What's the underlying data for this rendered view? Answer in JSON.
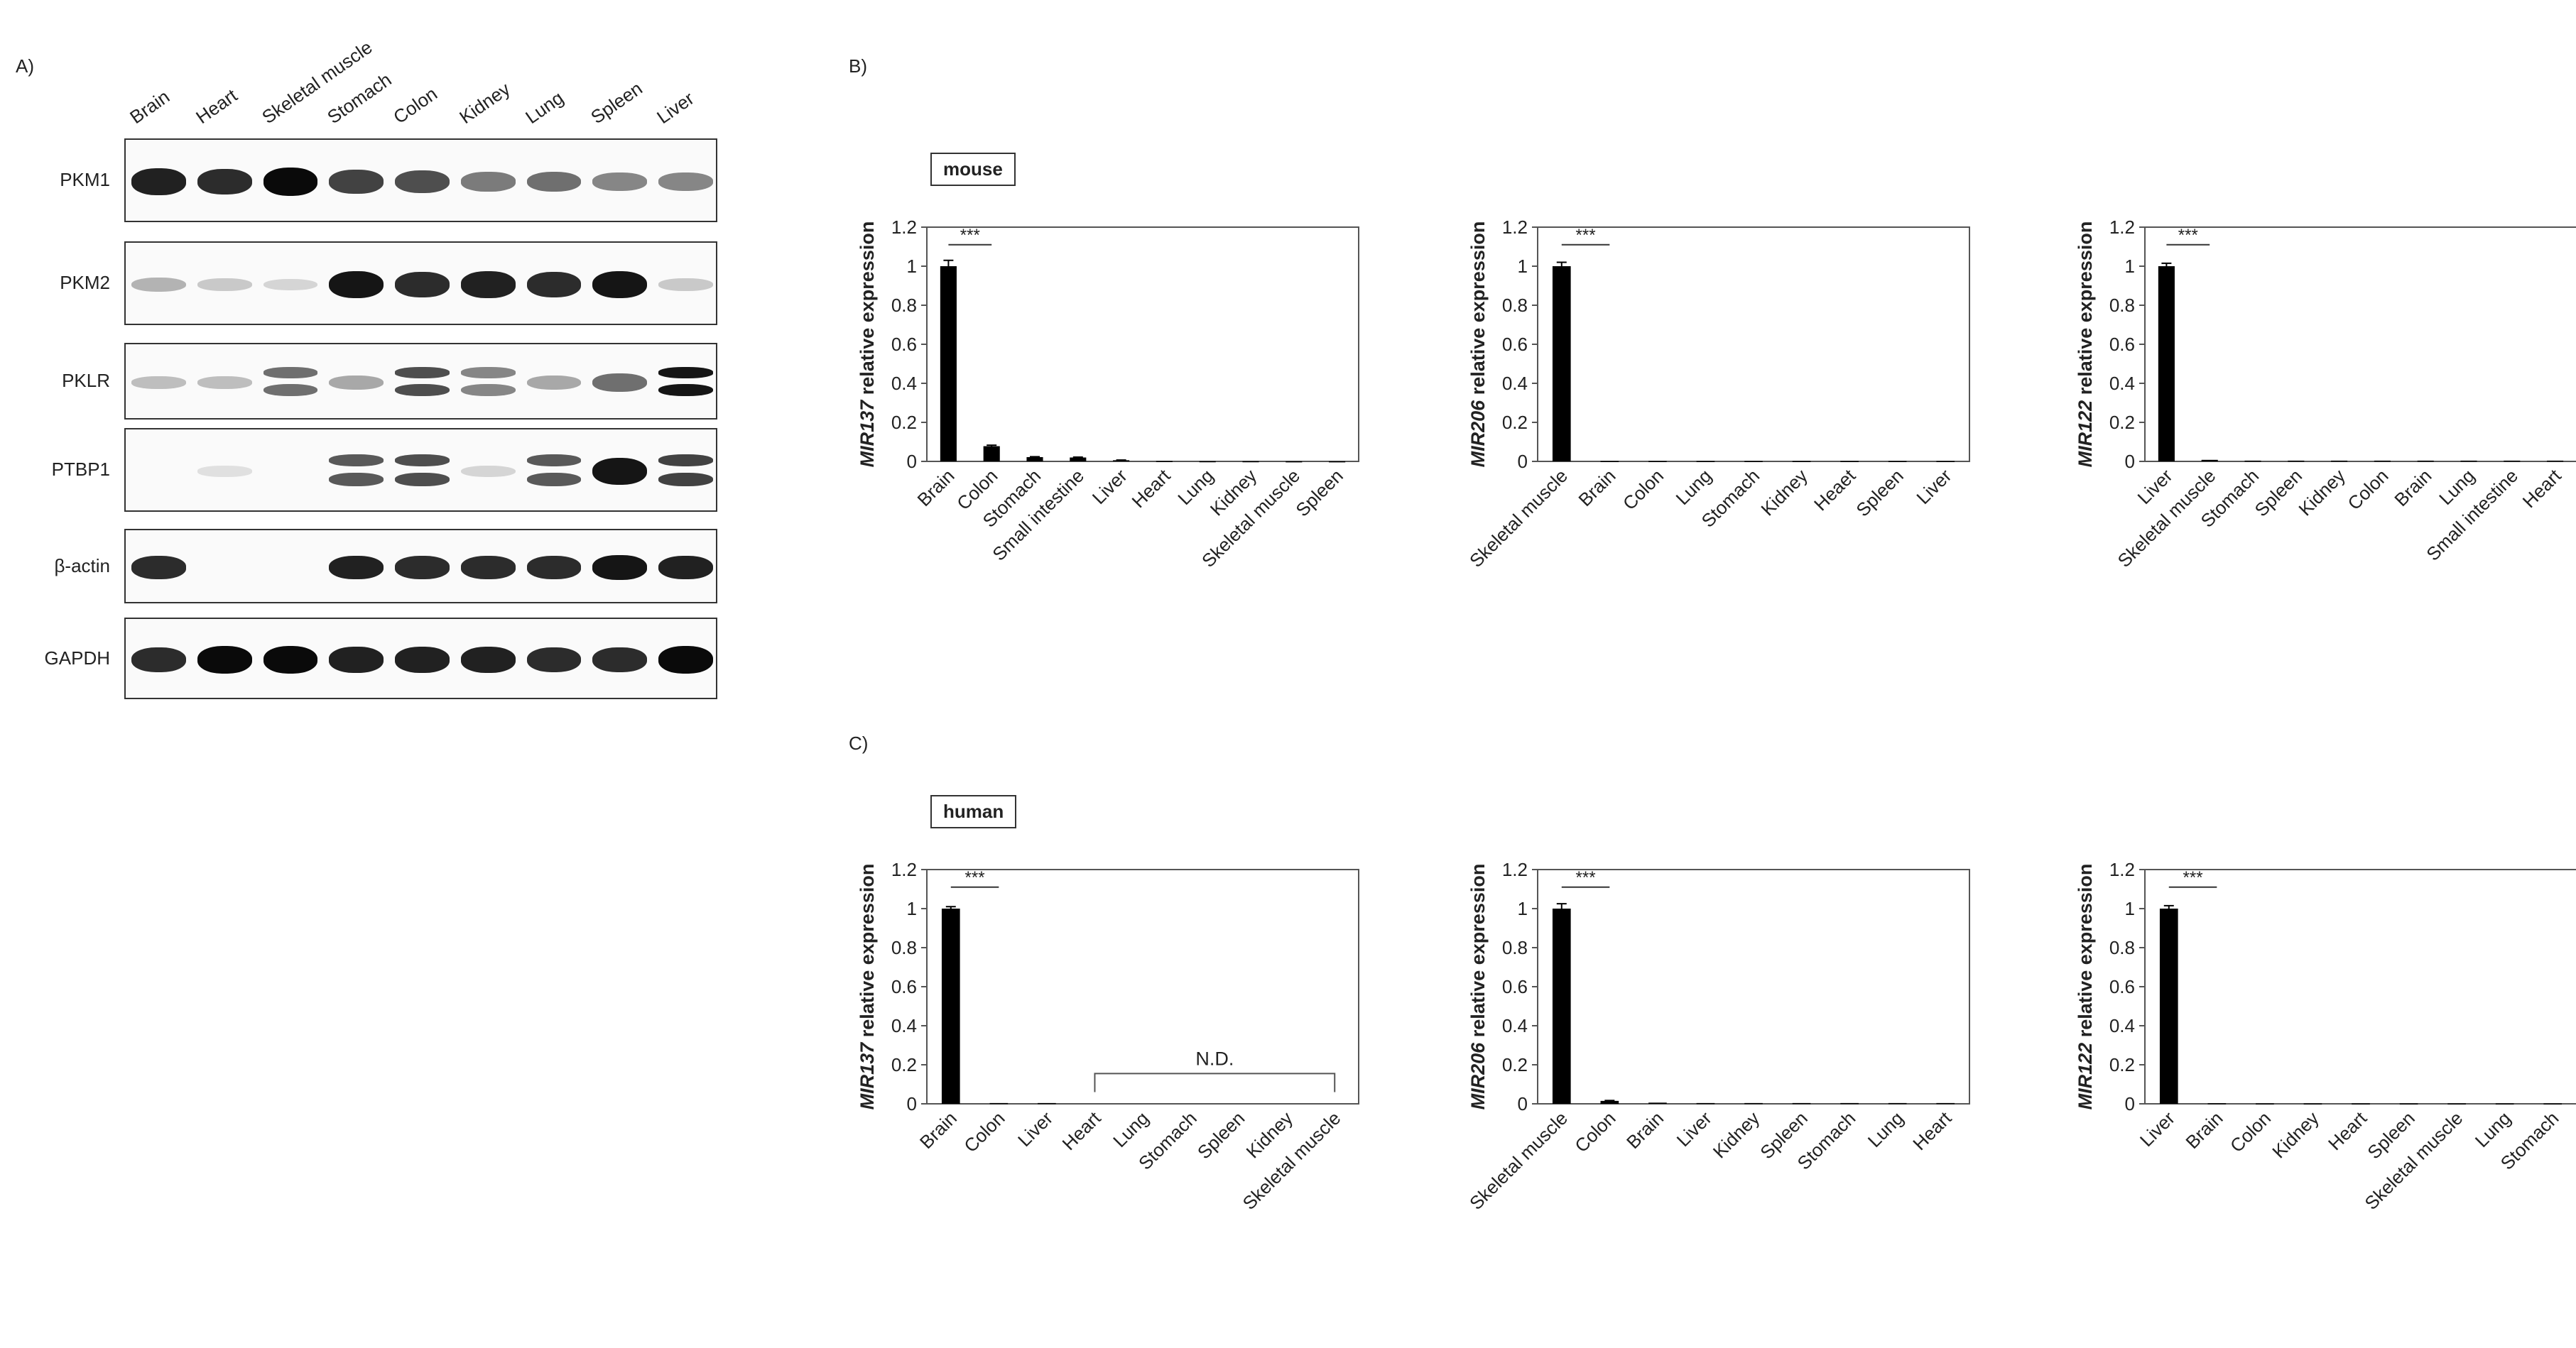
{
  "panel_a": {
    "label": "A)",
    "lanes": [
      "Brain",
      "Heart",
      "Skeletal muscle",
      "Stomach",
      "Colon",
      "Kidney",
      "Lung",
      "Spleen",
      "Liver"
    ],
    "rows": [
      {
        "name": "PKM1",
        "intensity": [
          0.9,
          0.85,
          1.0,
          0.75,
          0.7,
          0.5,
          0.55,
          0.45,
          0.45
        ],
        "split": [
          0,
          0,
          0,
          0,
          0,
          0,
          0,
          0,
          0
        ]
      },
      {
        "name": "PKM2",
        "intensity": [
          0.25,
          0.15,
          0.1,
          0.95,
          0.85,
          0.9,
          0.85,
          0.95,
          0.15
        ],
        "split": [
          0,
          0,
          0,
          0,
          0,
          0,
          0,
          0,
          0
        ]
      },
      {
        "name": "PKLR",
        "intensity": [
          0.2,
          0.2,
          0.55,
          0.3,
          0.7,
          0.45,
          0.3,
          0.55,
          0.95
        ],
        "split": [
          0,
          0,
          1,
          0,
          1,
          1,
          0,
          0,
          1
        ]
      },
      {
        "name": "PTBP1",
        "intensity": [
          0.0,
          0.05,
          0.0,
          0.65,
          0.7,
          0.1,
          0.65,
          0.95,
          0.75
        ],
        "split": [
          0,
          0,
          0,
          1,
          1,
          0,
          1,
          0,
          1
        ]
      },
      {
        "name": "β-actin",
        "intensity": [
          0.85,
          0.0,
          0.0,
          0.9,
          0.85,
          0.85,
          0.85,
          0.95,
          0.9
        ],
        "split": [
          0,
          0,
          0,
          0,
          0,
          0,
          0,
          0,
          0
        ]
      },
      {
        "name": "GAPDH",
        "intensity": [
          0.85,
          1.0,
          1.0,
          0.9,
          0.9,
          0.9,
          0.85,
          0.85,
          1.0
        ],
        "split": [
          0,
          0,
          0,
          0,
          0,
          0,
          0,
          0,
          0
        ]
      }
    ]
  },
  "panel_b": {
    "label": "B)",
    "species": "mouse"
  },
  "panel_c": {
    "label": "C)",
    "species": "human"
  },
  "significance": "***",
  "chart_data": [
    {
      "type": "bar",
      "panel": "B",
      "species": "mouse",
      "gene": "MIR137",
      "ylabel_suffix": " relative expression",
      "categories": [
        "Brain",
        "Colon",
        "Stomach",
        "Small intestine",
        "Liver",
        "Heart",
        "Lung",
        "Kidney",
        "Skeletal muscle",
        "Spleen"
      ],
      "values": [
        1.0,
        0.078,
        0.022,
        0.02,
        0.006,
        0.002,
        0.001,
        0.001,
        0.0005,
        0.0005
      ],
      "errors": [
        0.03,
        0.005,
        0.002,
        0.002,
        0.001,
        0,
        0,
        0,
        0,
        0
      ],
      "ylim": [
        0,
        1.2
      ],
      "yticks": [
        "0",
        "0.2",
        "0.4",
        "0.6",
        "0.8",
        "1",
        "1.2"
      ]
    },
    {
      "type": "bar",
      "panel": "B",
      "species": "mouse",
      "gene": "MIR206",
      "ylabel_suffix": " relative expression",
      "categories": [
        "Skeletal muscle",
        "Brain",
        "Colon",
        "Lung",
        "Stomach",
        "Kidney",
        "Heaet",
        "Spleen",
        "Liver"
      ],
      "values": [
        1.0,
        0.002,
        0.002,
        0.002,
        0.002,
        0.002,
        0.002,
        0.002,
        0.002
      ],
      "errors": [
        0.02,
        0,
        0,
        0,
        0,
        0,
        0,
        0,
        0
      ],
      "ylim": [
        0,
        1.2
      ],
      "yticks": [
        "0",
        "0.2",
        "0.4",
        "0.6",
        "0.8",
        "1",
        "1.2"
      ]
    },
    {
      "type": "bar",
      "panel": "B",
      "species": "mouse",
      "gene": "MIR122",
      "ylabel_suffix": " relative expression",
      "categories": [
        "Liver",
        "Skeletal muscle",
        "Stomach",
        "Spleen",
        "Kidney",
        "Colon",
        "Brain",
        "Lung",
        "Small intestine",
        "Heart"
      ],
      "values": [
        1.0,
        0.008,
        0.004,
        0.004,
        0.004,
        0.004,
        0.004,
        0.004,
        0.004,
        0.004
      ],
      "errors": [
        0.015,
        0,
        0,
        0,
        0,
        0,
        0,
        0,
        0,
        0
      ],
      "ylim": [
        0,
        1.2
      ],
      "yticks": [
        "0",
        "0.2",
        "0.4",
        "0.6",
        "0.8",
        "1",
        "1.2"
      ]
    },
    {
      "type": "bar",
      "panel": "C",
      "species": "human",
      "gene": "MIR137",
      "ylabel_suffix": " relative expression",
      "categories": [
        "Brain",
        "Colon",
        "Liver",
        "Heart",
        "Lung",
        "Stomach",
        "Spleen",
        "Kidney",
        "Skeletal muscle"
      ],
      "values": [
        1.0,
        0.004,
        0.004,
        0,
        0,
        0,
        0,
        0,
        0
      ],
      "errors": [
        0.01,
        0,
        0,
        0,
        0,
        0,
        0,
        0,
        0
      ],
      "nd_from": 3,
      "nd_label": "N.D.",
      "ylim": [
        0,
        1.2
      ],
      "yticks": [
        "0",
        "0.2",
        "0.4",
        "0.6",
        "0.8",
        "1",
        "1.2"
      ]
    },
    {
      "type": "bar",
      "panel": "C",
      "species": "human",
      "gene": "MIR206",
      "ylabel_suffix": " relative expression",
      "categories": [
        "Skeletal muscle",
        "Colon",
        "Brain",
        "Liver",
        "Kidney",
        "Spleen",
        "Stomach",
        "Lung",
        "Heart"
      ],
      "values": [
        1.0,
        0.015,
        0.006,
        0.004,
        0.004,
        0.004,
        0.004,
        0.004,
        0.004
      ],
      "errors": [
        0.025,
        0.002,
        0,
        0,
        0,
        0,
        0,
        0,
        0
      ],
      "ylim": [
        0,
        1.2
      ],
      "yticks": [
        "0",
        "0.2",
        "0.4",
        "0.6",
        "0.8",
        "1",
        "1.2"
      ]
    },
    {
      "type": "bar",
      "panel": "C",
      "species": "human",
      "gene": "MIR122",
      "ylabel_suffix": " relative expression",
      "categories": [
        "Liver",
        "Brain",
        "Colon",
        "Kidney",
        "Heart",
        "Spleen",
        "Skeletal muscle",
        "Lung",
        "Stomach"
      ],
      "values": [
        1.0,
        0.003,
        0.002,
        0.002,
        0.002,
        0.002,
        0.002,
        0.002,
        0.002
      ],
      "errors": [
        0.015,
        0,
        0,
        0,
        0,
        0,
        0,
        0,
        0
      ],
      "ylim": [
        0,
        1.2
      ],
      "yticks": [
        "0",
        "0.2",
        "0.4",
        "0.6",
        "0.8",
        "1",
        "1.2"
      ]
    }
  ]
}
